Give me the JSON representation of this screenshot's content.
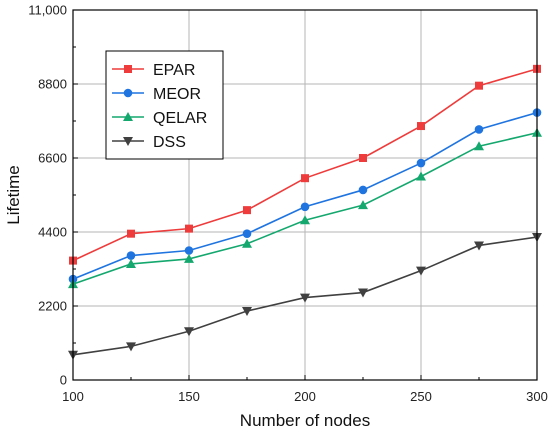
{
  "chart_data": {
    "type": "line",
    "title": "",
    "xlabel": "Number of nodes",
    "ylabel": "Lifetime",
    "x": [
      100,
      125,
      150,
      175,
      200,
      225,
      250,
      275,
      300
    ],
    "xlim": [
      100,
      300
    ],
    "ylim": [
      0,
      11000
    ],
    "xticks": [
      100,
      150,
      200,
      250,
      300
    ],
    "xtick_labels": [
      "100",
      "150",
      "200",
      "250",
      "300"
    ],
    "yticks": [
      0,
      2200,
      4400,
      6600,
      8800,
      11000
    ],
    "ytick_labels": [
      "0",
      "2200",
      "4400",
      "6600",
      "8800",
      "11,000"
    ],
    "grid": true,
    "legend_position": "top-left",
    "series": [
      {
        "name": "EPAR",
        "color": "#ee3b3b",
        "marker": "square",
        "values": [
          3550,
          4350,
          4500,
          5050,
          6000,
          6600,
          7550,
          8750,
          9250
        ]
      },
      {
        "name": "MEOR",
        "color": "#1f74e0",
        "marker": "circle",
        "values": [
          3000,
          3700,
          3850,
          4350,
          5150,
          5650,
          6450,
          7450,
          7950
        ]
      },
      {
        "name": "QELAR",
        "color": "#14a86e",
        "marker": "triangle-up",
        "values": [
          2850,
          3450,
          3600,
          4050,
          4750,
          5200,
          6050,
          6950,
          7350
        ]
      },
      {
        "name": "DSS",
        "color": "#404040",
        "marker": "triangle-down",
        "values": [
          750,
          1000,
          1450,
          2050,
          2450,
          2600,
          3250,
          4000,
          4250
        ]
      }
    ]
  }
}
